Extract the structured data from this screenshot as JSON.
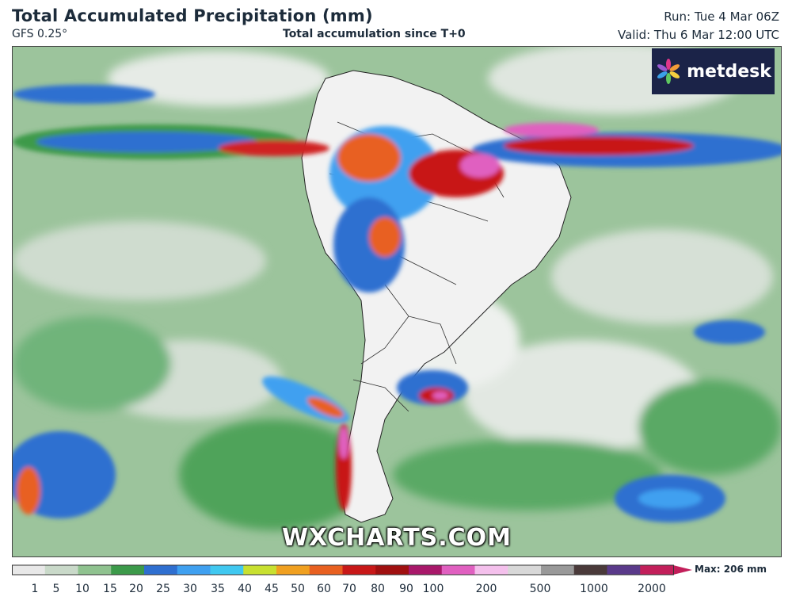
{
  "header": {
    "title": "Total Accumulated Precipitation (mm)",
    "model": "GFS 0.25°",
    "subtitle": "Total accumulation since T+0",
    "run": "Run: Tue 4 Mar 06Z",
    "valid": "Valid: Thu 6 Mar 12:00 UTC"
  },
  "logo": {
    "text": "metdesk",
    "icon": "metdesk-flower-icon"
  },
  "watermark": "WXCHARTS.COM",
  "legend": {
    "max_label": "Max: 206 mm",
    "ticks": [
      "1",
      "5",
      "10",
      "15",
      "20",
      "25",
      "30",
      "35",
      "40",
      "45",
      "50",
      "60",
      "70",
      "80",
      "90",
      "100",
      "200",
      "500",
      "1000",
      "2000"
    ],
    "colors": [
      "#e8e8e8",
      "#c9d9c9",
      "#8fc28f",
      "#3c9a4a",
      "#2f6fd0",
      "#3fa0f0",
      "#40c8f0",
      "#c8e030",
      "#f0a020",
      "#e86020",
      "#c81818",
      "#a01010",
      "#a8186a",
      "#e060c0",
      "#f4c0ec",
      "#d8d8d8",
      "#999999",
      "#4a3a3a",
      "#5a3a8a",
      "#c21f5a"
    ]
  }
}
